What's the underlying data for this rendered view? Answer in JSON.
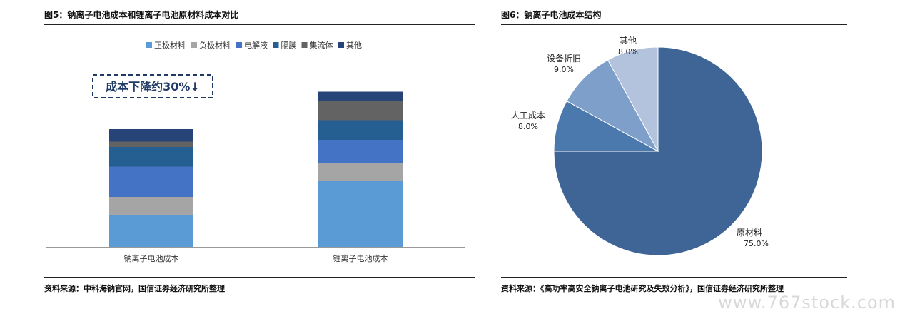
{
  "left": {
    "title": "图5：钠离子电池成本和锂离子电池原材料成本对比",
    "source": "资料来源：中科海钠官网，国信证券经济研究所整理",
    "annotation": "成本下降约30%↓"
  },
  "right": {
    "title": "图6：钠离子电池成本结构",
    "source": "资料来源：《高功率高安全钠离子电池研究及失效分析》，国信证券经济研究所整理"
  },
  "watermark": "www.767stock.com",
  "chart_data": [
    {
      "type": "bar",
      "stacked": true,
      "categories": [
        "钠离子电池成本",
        "锂离子电池成本"
      ],
      "series": [
        {
          "name": "正极材料",
          "color": "#5b9bd5",
          "values": [
            18,
            37
          ]
        },
        {
          "name": "负极材料",
          "color": "#a5a5a5",
          "values": [
            10,
            10
          ]
        },
        {
          "name": "电解液",
          "color": "#4472c4",
          "values": [
            17,
            13
          ]
        },
        {
          "name": "隔膜",
          "color": "#255e91",
          "values": [
            11,
            11
          ]
        },
        {
          "name": "集流体",
          "color": "#636363",
          "values": [
            3,
            11
          ]
        },
        {
          "name": "其他",
          "color": "#264478",
          "values": [
            7,
            5
          ]
        }
      ],
      "ylim": [
        0,
        100
      ],
      "legend": "top",
      "grid": false
    },
    {
      "type": "pie",
      "slices": [
        {
          "label": "原材料",
          "value": 75.0,
          "text": "75.0%",
          "color": "#3e6595"
        },
        {
          "label": "人工成本",
          "value": 8.0,
          "text": "8.0%",
          "color": "#4b78ad"
        },
        {
          "label": "设备折旧",
          "value": 9.0,
          "text": "9.0%",
          "color": "#7f9fcb"
        },
        {
          "label": "其他",
          "value": 8.0,
          "text": "8.0%",
          "color": "#b3c3de"
        }
      ],
      "start_angle_deg": 0,
      "direction": "clockwise"
    }
  ]
}
